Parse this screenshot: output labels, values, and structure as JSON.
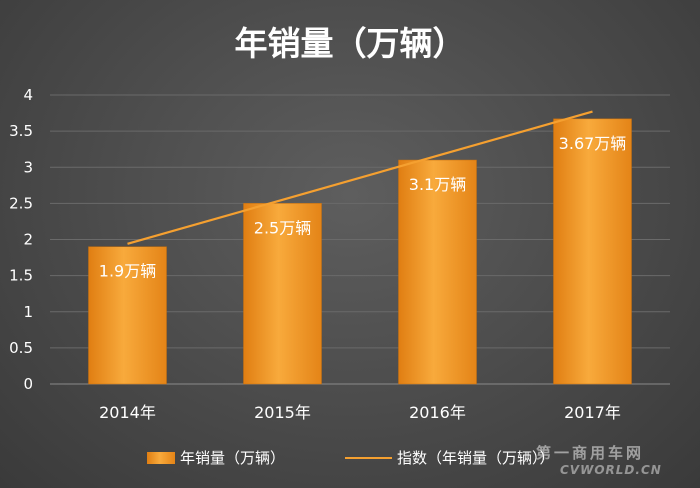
{
  "chart_data": {
    "type": "bar",
    "title": "年销量（万辆）",
    "categories": [
      "2014年",
      "2015年",
      "2016年",
      "2017年"
    ],
    "series": [
      {
        "name": "年销量（万辆）",
        "type": "bar",
        "values": [
          1.9,
          2.5,
          3.1,
          3.67
        ],
        "data_labels": [
          "1.9万辆",
          "2.5万辆",
          "3.1万辆",
          "3.67万辆"
        ],
        "color": "#f5a030"
      },
      {
        "name": "指数（年销量（万辆））",
        "type": "line",
        "values": [
          1.94,
          2.55,
          3.16,
          3.77
        ],
        "color": "#f5a030"
      }
    ],
    "ylim": [
      0,
      4
    ],
    "yticks": [
      "0",
      "0.5",
      "1",
      "1.5",
      "2",
      "2.5",
      "3",
      "3.5",
      "4"
    ],
    "grid": true,
    "legend_position": "bottom",
    "xlabel": "",
    "ylabel": ""
  },
  "watermark": {
    "text": "第一商用车网",
    "sub": "CVWORLD.CN"
  }
}
